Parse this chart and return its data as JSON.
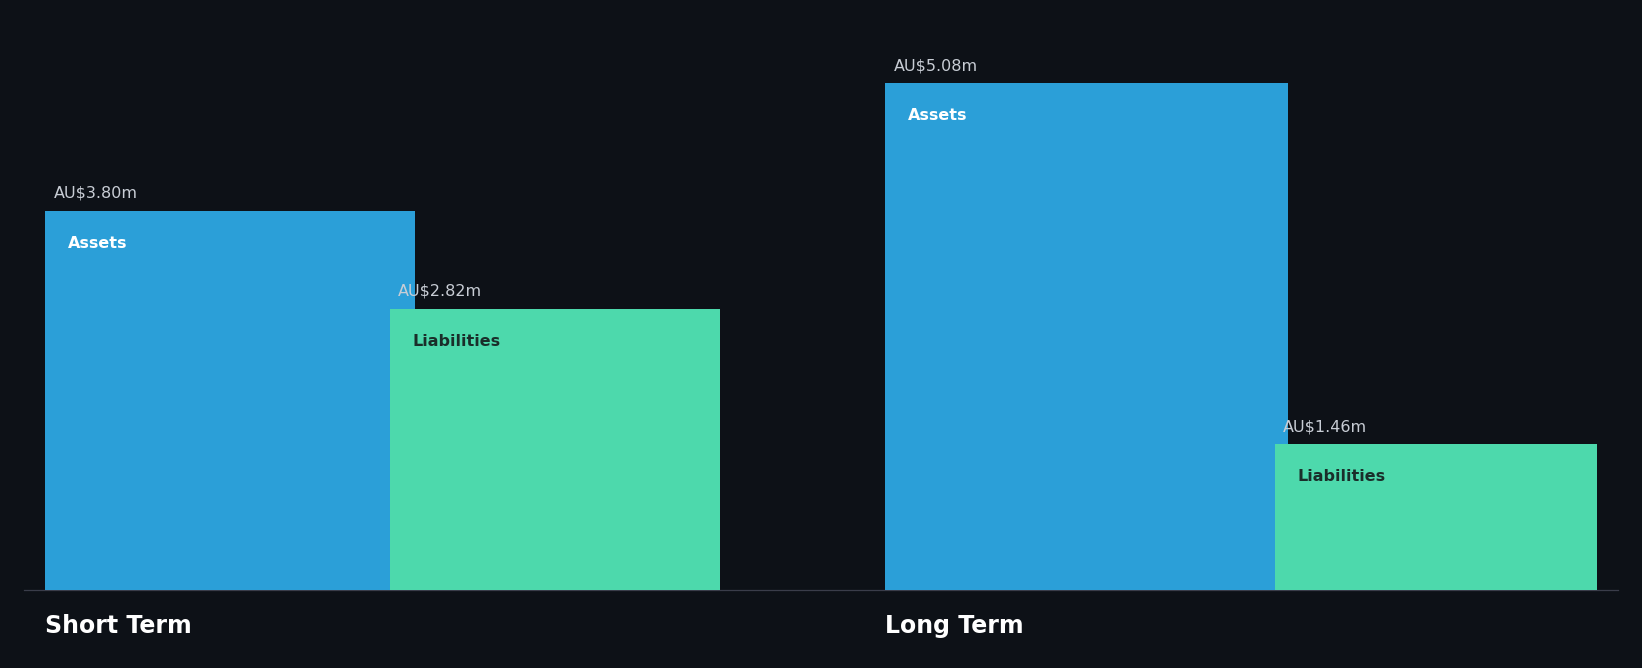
{
  "background_color": "#0d1117",
  "bar_color_assets": "#2b9fd8",
  "bar_color_liabilities": "#4dd9ac",
  "text_color_value": "#c8cdd5",
  "text_color_assets_label": "#ffffff",
  "text_color_liabilities_label": "#1a2e2a",
  "short_term": {
    "assets_value": 3.8,
    "liabilities_value": 2.82,
    "assets_label": "Assets",
    "liabilities_label": "Liabilities",
    "assets_tag": "AU$3.80m",
    "liabilities_tag": "AU$2.82m",
    "category_label": "Short Term"
  },
  "long_term": {
    "assets_value": 5.08,
    "liabilities_value": 1.46,
    "assets_label": "Assets",
    "liabilities_label": "Liabilities",
    "assets_tag": "AU$5.08m",
    "liabilities_tag": "AU$1.46m",
    "category_label": "Long Term"
  },
  "max_value": 5.08,
  "figsize": [
    16.42,
    6.68
  ],
  "dpi": 100
}
